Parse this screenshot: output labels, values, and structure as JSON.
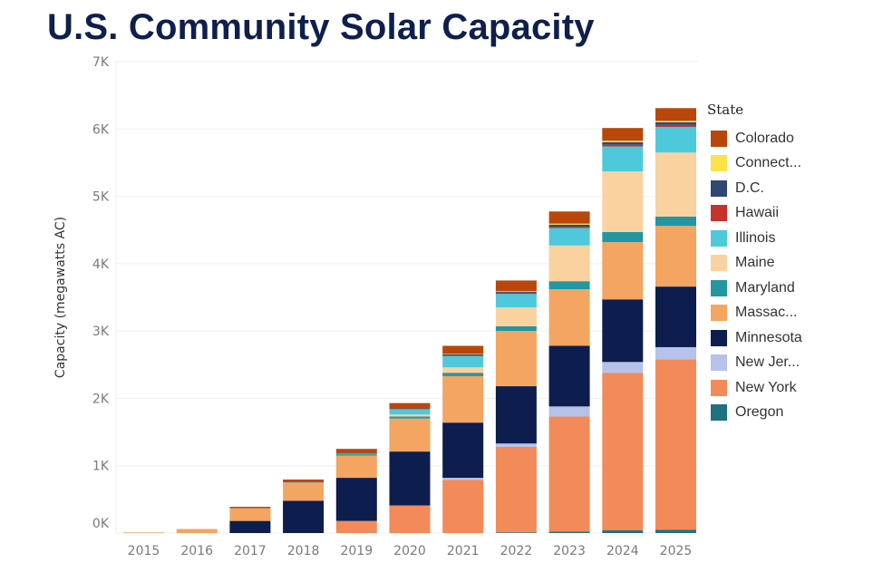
{
  "page": {
    "title": "U.S. Community Solar Capacity"
  },
  "colors": {
    "Colorado": "#b9470b",
    "Connecticut": "#fde24a",
    "D.C.": "#2e4774",
    "Hawaii": "#c5332b",
    "Illinois": "#4ec9dc",
    "Maine": "#f9d2a0",
    "Maryland": "#2496a1",
    "Massachusetts": "#f3a561",
    "Minnesota": "#0c1d4e",
    "New Jersey": "#b6c2ea",
    "New York": "#f28a5a",
    "Oregon": "#1e7281"
  },
  "legend": {
    "title": "State",
    "items": [
      "Colorado",
      "Connect...",
      "D.C.",
      "Hawaii",
      "Illinois",
      "Maine",
      "Maryland",
      "Massac...",
      "Minnesota",
      "New Jer...",
      "New York",
      "Oregon"
    ]
  },
  "chart_data": {
    "type": "bar",
    "stacked": true,
    "title": "U.S. Community Solar Capacity",
    "xlabel": "",
    "ylabel": "Capacity (megawatts AC)",
    "ylim": [
      0,
      7000
    ],
    "yticks": [
      0,
      1000,
      2000,
      3000,
      4000,
      5000,
      6000,
      7000
    ],
    "ytick_labels": [
      "0K",
      "1K",
      "2K",
      "3K",
      "4K",
      "5K",
      "6K",
      "7K"
    ],
    "categories": [
      "2015",
      "2016",
      "2017",
      "2018",
      "2019",
      "2020",
      "2021",
      "2022",
      "2023",
      "2024",
      "2025"
    ],
    "grid": "horizontal",
    "legend_position": "right",
    "stack_order": [
      "Oregon",
      "New York",
      "New Jersey",
      "Minnesota",
      "Massachusetts",
      "Maryland",
      "Maine",
      "Illinois",
      "Hawaii",
      "D.C.",
      "Connecticut",
      "Colorado"
    ],
    "series": [
      {
        "name": "Colorado",
        "values": [
          0,
          0,
          20,
          30,
          60,
          80,
          120,
          160,
          180,
          190,
          190
        ]
      },
      {
        "name": "Connecticut",
        "values": [
          0,
          0,
          0,
          0,
          0,
          0,
          5,
          10,
          15,
          20,
          20
        ]
      },
      {
        "name": "D.C.",
        "values": [
          0,
          0,
          0,
          5,
          10,
          10,
          20,
          20,
          30,
          40,
          40
        ]
      },
      {
        "name": "Hawaii",
        "values": [
          0,
          0,
          0,
          0,
          0,
          0,
          5,
          10,
          20,
          25,
          30
        ]
      },
      {
        "name": "Illinois",
        "values": [
          0,
          0,
          0,
          0,
          10,
          80,
          170,
          200,
          260,
          370,
          380
        ]
      },
      {
        "name": "Maine",
        "values": [
          0,
          0,
          0,
          0,
          0,
          30,
          80,
          280,
          530,
          900,
          950
        ]
      },
      {
        "name": "Maryland",
        "values": [
          0,
          0,
          0,
          10,
          20,
          30,
          50,
          70,
          120,
          150,
          140
        ]
      },
      {
        "name": "Massachusetts",
        "values": [
          10,
          60,
          190,
          270,
          330,
          490,
          690,
          820,
          840,
          850,
          900
        ]
      },
      {
        "name": "Minnesota",
        "values": [
          0,
          0,
          180,
          480,
          640,
          800,
          820,
          850,
          900,
          930,
          900
        ]
      },
      {
        "name": "New Jersey",
        "values": [
          0,
          0,
          0,
          0,
          0,
          0,
          30,
          50,
          150,
          160,
          180
        ]
      },
      {
        "name": "New York",
        "values": [
          0,
          0,
          0,
          0,
          180,
          410,
          790,
          1270,
          1710,
          2340,
          2530
        ]
      },
      {
        "name": "Oregon",
        "values": [
          0,
          0,
          0,
          0,
          0,
          0,
          0,
          10,
          20,
          40,
          50
        ]
      }
    ]
  }
}
